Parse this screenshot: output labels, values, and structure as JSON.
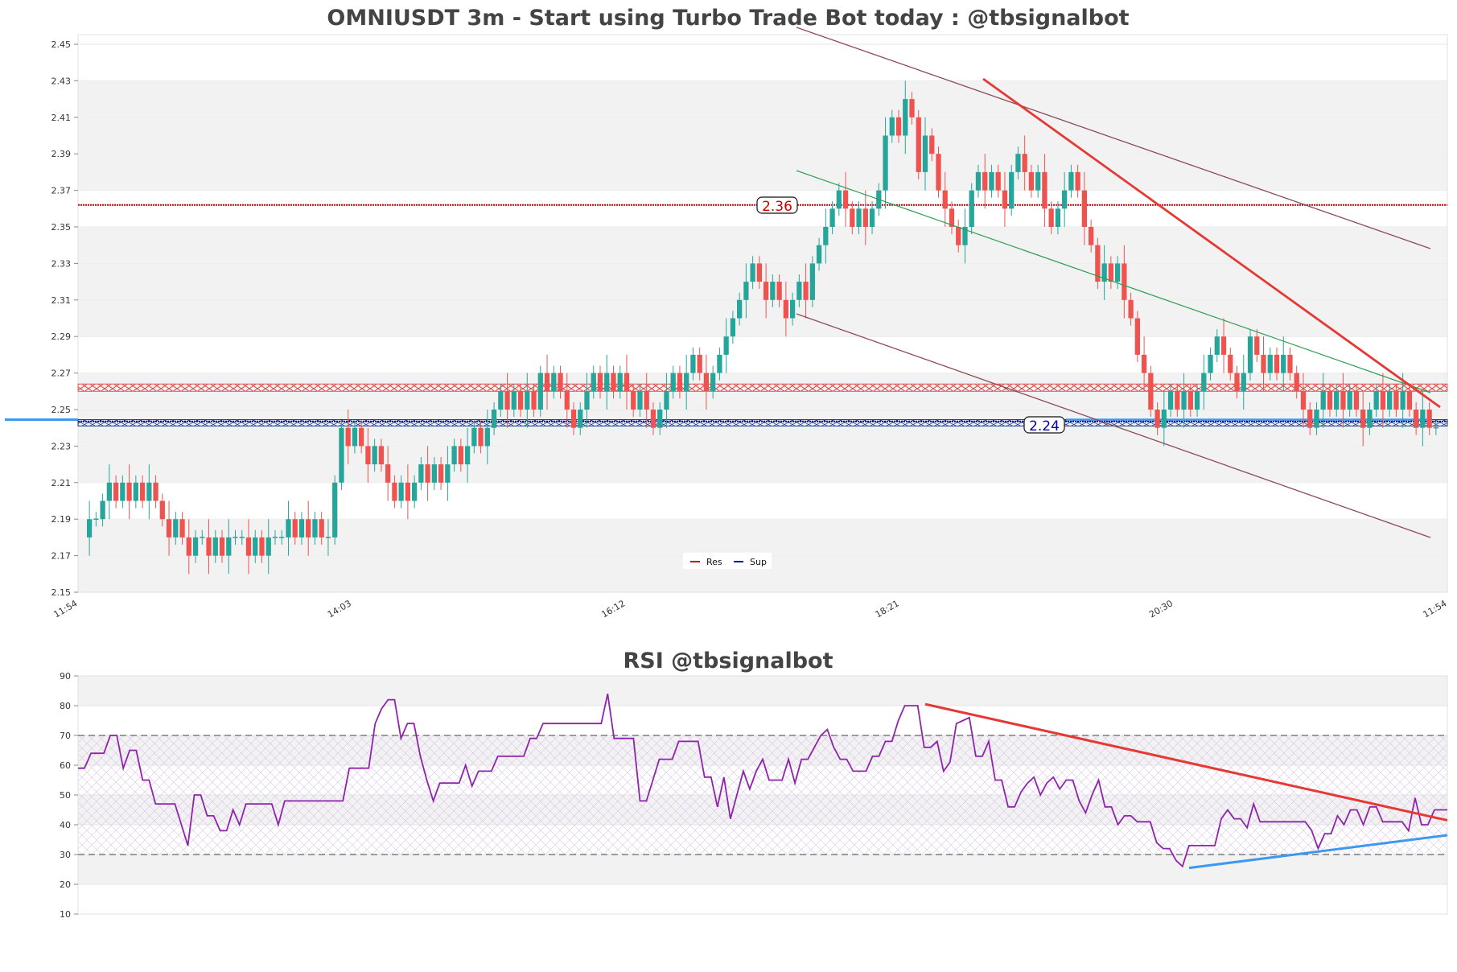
{
  "colors": {
    "up": "#26a69a",
    "down": "#ef5350",
    "resistance": "#cc0000",
    "support": "#0000aa",
    "support_line": "#3c99f0",
    "channel": "#8b4a5a",
    "mid_channel": "#2e9e52",
    "trend_red": "#e53935",
    "rsi_line": "#8e24aa",
    "rsi_trend_down": "#e53935",
    "rsi_trend_up": "#3c99f0",
    "band": "#f2f2f2",
    "title": "#444444"
  },
  "chart_data": [
    {
      "type": "candlestick",
      "title": "OMNIUSDT 3m - Start using Turbo Trade Bot today : @tbsignalbot",
      "ylim": [
        2.15,
        2.45
      ],
      "y_ticks": [
        "2.45",
        "2.43",
        "2.41",
        "2.39",
        "2.37",
        "2.35",
        "2.33",
        "2.31",
        "2.29",
        "2.27",
        "2.25",
        "2.23",
        "2.21",
        "2.19",
        "2.17",
        "2.15"
      ],
      "x_ticks": [
        "11:54",
        "14:03",
        "16:12",
        "18:21",
        "20:30",
        "11:54"
      ],
      "levels": {
        "resistance": {
          "value": 2.362,
          "label": "2.36"
        },
        "resistance_zone": [
          2.26,
          2.264
        ],
        "support": {
          "value": 2.2435,
          "label": "2.24"
        },
        "support_zone": [
          2.241,
          2.2445
        ]
      },
      "legend": [
        {
          "label": "Res",
          "icon": "red-dash-icon"
        },
        {
          "label": "Sup",
          "icon": "blue-dash-icon"
        }
      ],
      "closes": [
        2.19,
        2.19,
        2.2,
        2.21,
        2.2,
        2.21,
        2.2,
        2.21,
        2.2,
        2.21,
        2.2,
        2.19,
        2.18,
        2.19,
        2.18,
        2.17,
        2.18,
        2.18,
        2.17,
        2.18,
        2.17,
        2.18,
        2.18,
        2.18,
        2.17,
        2.18,
        2.17,
        2.18,
        2.18,
        2.18,
        2.19,
        2.18,
        2.19,
        2.18,
        2.19,
        2.18,
        2.18,
        2.21,
        2.24,
        2.23,
        2.24,
        2.23,
        2.22,
        2.23,
        2.22,
        2.21,
        2.2,
        2.21,
        2.2,
        2.21,
        2.22,
        2.21,
        2.22,
        2.21,
        2.22,
        2.23,
        2.22,
        2.23,
        2.24,
        2.23,
        2.24,
        2.25,
        2.26,
        2.25,
        2.26,
        2.25,
        2.26,
        2.25,
        2.27,
        2.26,
        2.27,
        2.26,
        2.25,
        2.24,
        2.25,
        2.26,
        2.27,
        2.26,
        2.27,
        2.26,
        2.27,
        2.26,
        2.25,
        2.26,
        2.25,
        2.24,
        2.25,
        2.26,
        2.27,
        2.26,
        2.27,
        2.28,
        2.27,
        2.26,
        2.27,
        2.28,
        2.29,
        2.3,
        2.31,
        2.32,
        2.33,
        2.32,
        2.31,
        2.32,
        2.31,
        2.3,
        2.31,
        2.32,
        2.31,
        2.33,
        2.34,
        2.35,
        2.36,
        2.37,
        2.36,
        2.35,
        2.36,
        2.35,
        2.36,
        2.37,
        2.4,
        2.41,
        2.4,
        2.42,
        2.41,
        2.38,
        2.4,
        2.39,
        2.37,
        2.36,
        2.35,
        2.34,
        2.35,
        2.37,
        2.38,
        2.37,
        2.38,
        2.37,
        2.36,
        2.38,
        2.39,
        2.38,
        2.37,
        2.38,
        2.36,
        2.35,
        2.36,
        2.37,
        2.38,
        2.37,
        2.35,
        2.34,
        2.32,
        2.33,
        2.32,
        2.33,
        2.31,
        2.3,
        2.28,
        2.27,
        2.25,
        2.24,
        2.25,
        2.26,
        2.25,
        2.26,
        2.25,
        2.26,
        2.27,
        2.28,
        2.29,
        2.28,
        2.27,
        2.26,
        2.27,
        2.29,
        2.28,
        2.27,
        2.28,
        2.27,
        2.28,
        2.27,
        2.26,
        2.25,
        2.24,
        2.25,
        2.26,
        2.25,
        2.26,
        2.25,
        2.26,
        2.25,
        2.24,
        2.25,
        2.26,
        2.25,
        2.26,
        2.25,
        2.26,
        2.25,
        2.24,
        2.25,
        2.24,
        2.24
      ]
    },
    {
      "type": "line",
      "title": "RSI @tbsignalbot",
      "ylim": [
        10,
        90
      ],
      "y_ticks": [
        "90",
        "80",
        "70",
        "60",
        "50",
        "40",
        "30",
        "20",
        "10"
      ],
      "overbought": 70,
      "oversold": 30,
      "values": [
        59,
        59,
        64,
        64,
        64,
        70,
        70,
        59,
        65,
        65,
        55,
        55,
        47,
        47,
        47,
        47,
        40,
        33,
        50,
        50,
        43,
        43,
        38,
        38,
        45,
        40,
        47,
        47,
        47,
        47,
        47,
        40,
        48,
        48,
        48,
        48,
        48,
        48,
        48,
        48,
        48,
        48,
        59,
        59,
        59,
        59,
        74,
        79,
        82,
        82,
        69,
        74,
        74,
        63,
        55,
        48,
        54,
        54,
        54,
        54,
        60,
        53,
        58,
        58,
        58,
        63,
        63,
        63,
        63,
        63,
        69,
        69,
        74,
        74,
        74,
        74,
        74,
        74,
        74,
        74,
        74,
        74,
        84,
        69,
        69,
        69,
        69,
        48,
        48,
        55,
        62,
        62,
        62,
        68,
        68,
        68,
        68,
        56,
        56,
        46,
        56,
        42,
        50,
        58,
        52,
        58,
        62,
        55,
        55,
        55,
        62,
        54,
        62,
        62,
        66,
        70,
        72,
        66,
        62,
        62,
        58,
        58,
        58,
        63,
        63,
        68,
        68,
        75,
        80,
        80,
        80,
        66,
        66,
        68,
        58,
        61,
        74,
        75,
        76,
        63,
        63,
        68,
        55,
        55,
        46,
        46,
        51,
        54,
        56,
        50,
        54,
        56,
        52,
        55,
        55,
        48,
        44,
        50,
        55,
        46,
        46,
        40,
        43,
        43,
        41,
        41,
        41,
        34,
        32,
        32,
        28,
        26,
        33,
        33,
        33,
        33,
        33,
        42,
        45,
        42,
        42,
        39,
        47,
        41,
        41,
        41,
        41,
        41,
        41,
        41,
        41,
        38,
        32,
        37,
        37,
        43,
        40,
        45,
        45,
        40,
        46,
        46,
        41,
        41,
        41,
        41,
        38,
        49,
        40,
        40,
        45,
        45,
        45
      ]
    }
  ]
}
